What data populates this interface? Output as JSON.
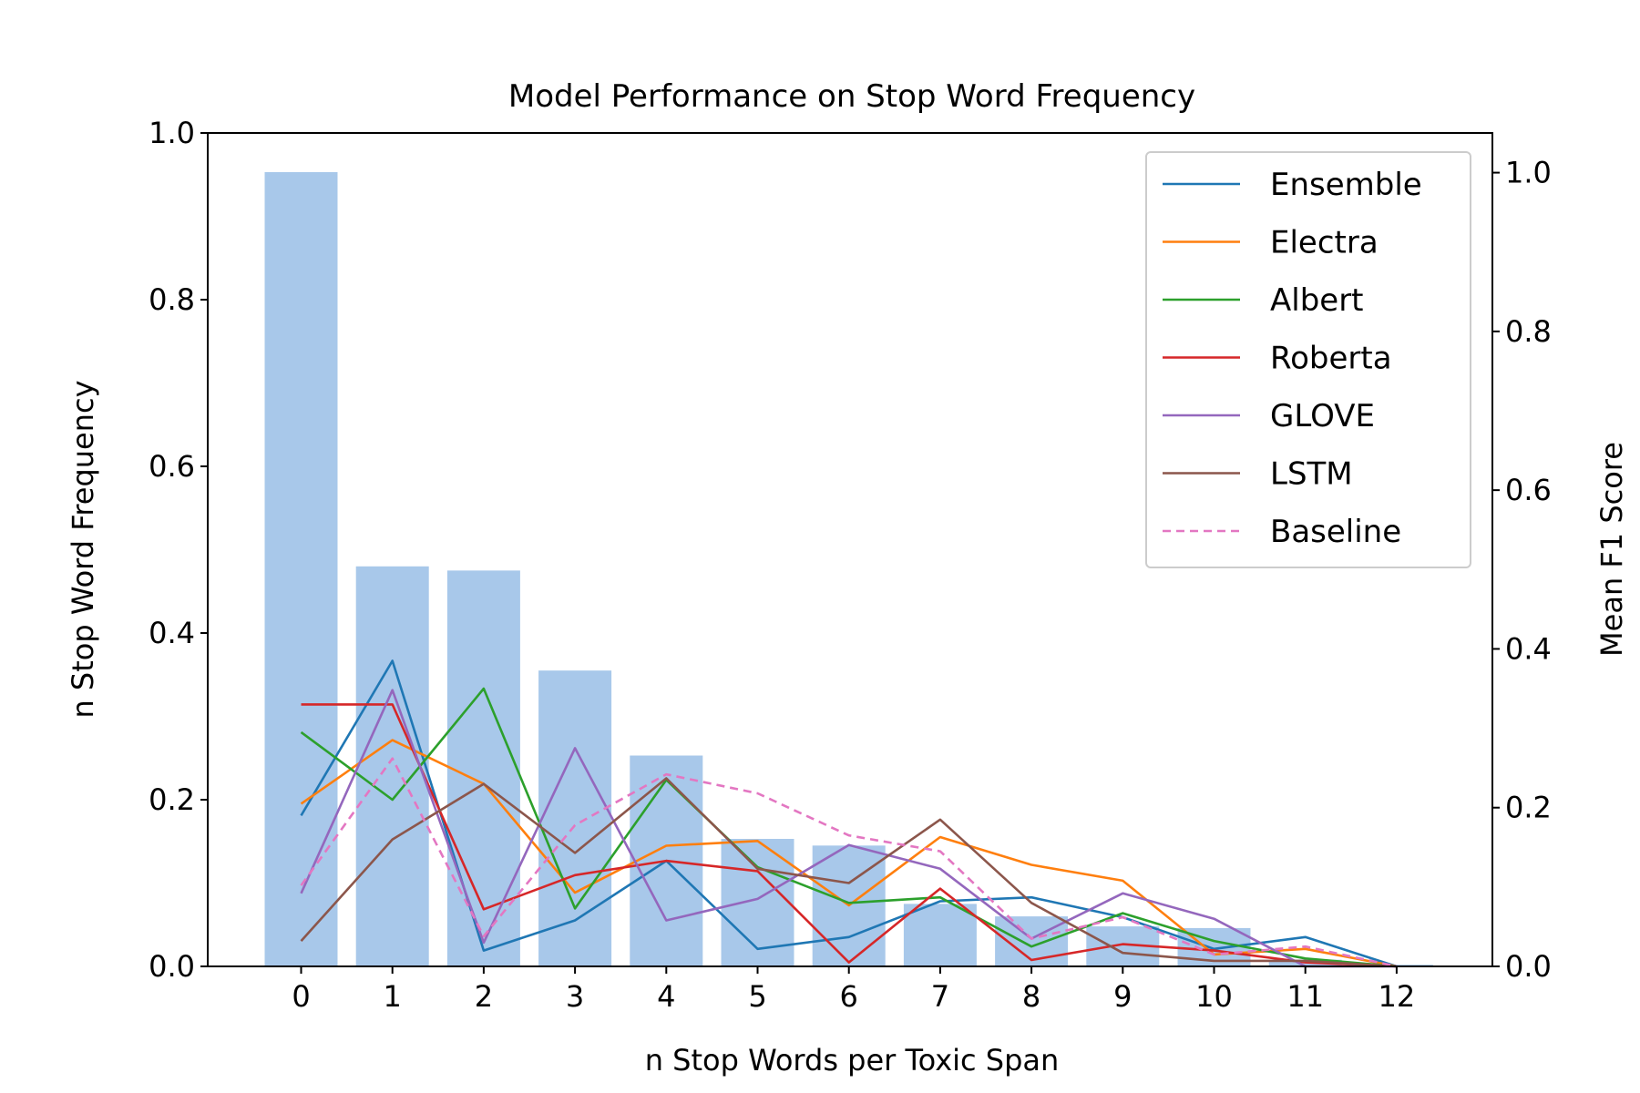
{
  "chart_data": {
    "type": "bar",
    "title": "Model Performance on Stop Word Frequency",
    "xlabel": "n Stop Words per Toxic Span",
    "ylabel": "n Stop Word Frequency",
    "y2label": "Mean F1 Score",
    "categories": [
      "0",
      "1",
      "2",
      "3",
      "4",
      "5",
      "6",
      "7",
      "8",
      "9",
      "10",
      "11",
      "12"
    ],
    "x": [
      0,
      1,
      2,
      3,
      4,
      5,
      6,
      7,
      8,
      9,
      10,
      11,
      12
    ],
    "ylim": [
      0,
      1.0
    ],
    "y2lim": [
      0,
      1.05
    ],
    "yticks": [
      "0.0",
      "0.2",
      "0.4",
      "0.6",
      "0.8",
      "1.0"
    ],
    "y2ticks": [
      "0.0",
      "0.2",
      "0.4",
      "0.6",
      "0.8",
      "1.0"
    ],
    "grid": false,
    "legend_position": "top-right",
    "bar_color": "#a8c8ea",
    "bars": {
      "values": [
        0.953,
        0.48,
        0.475,
        0.355,
        0.253,
        0.153,
        0.145,
        0.075,
        0.06,
        0.048,
        0.046,
        0.008,
        0.002
      ]
    },
    "series": [
      {
        "name": "Ensemble",
        "color": "#1f77b4",
        "dashed": false,
        "values": [
          0.19,
          0.385,
          0.02,
          0.058,
          0.133,
          0.022,
          0.037,
          0.082,
          0.087,
          0.062,
          0.022,
          0.037,
          0.0
        ]
      },
      {
        "name": "Electra",
        "color": "#ff7f0e",
        "dashed": false,
        "values": [
          0.205,
          0.285,
          0.23,
          0.093,
          0.152,
          0.158,
          0.077,
          0.163,
          0.128,
          0.108,
          0.015,
          0.022,
          0.0
        ]
      },
      {
        "name": "Albert",
        "color": "#2ca02c",
        "dashed": false,
        "values": [
          0.295,
          0.21,
          0.35,
          0.073,
          0.235,
          0.125,
          0.08,
          0.087,
          0.025,
          0.067,
          0.032,
          0.01,
          0.0
        ]
      },
      {
        "name": "Roberta",
        "color": "#d62728",
        "dashed": false,
        "values": [
          0.33,
          0.33,
          0.072,
          0.115,
          0.133,
          0.12,
          0.005,
          0.098,
          0.008,
          0.028,
          0.02,
          0.005,
          0.0
        ]
      },
      {
        "name": "GLOVE",
        "color": "#9467bd",
        "dashed": false,
        "values": [
          0.092,
          0.348,
          0.03,
          0.275,
          0.058,
          0.085,
          0.153,
          0.123,
          0.035,
          0.092,
          0.06,
          0.0,
          0.0
        ]
      },
      {
        "name": "LSTM",
        "color": "#8c564b",
        "dashed": false,
        "values": [
          0.032,
          0.16,
          0.23,
          0.143,
          0.237,
          0.123,
          0.105,
          0.185,
          0.08,
          0.017,
          0.007,
          0.007,
          0.0
        ]
      },
      {
        "name": "Baseline",
        "color": "#e377c2",
        "dashed": true,
        "values": [
          0.102,
          0.262,
          0.038,
          0.178,
          0.242,
          0.218,
          0.165,
          0.145,
          0.035,
          0.062,
          0.015,
          0.025,
          0.0
        ]
      }
    ]
  }
}
